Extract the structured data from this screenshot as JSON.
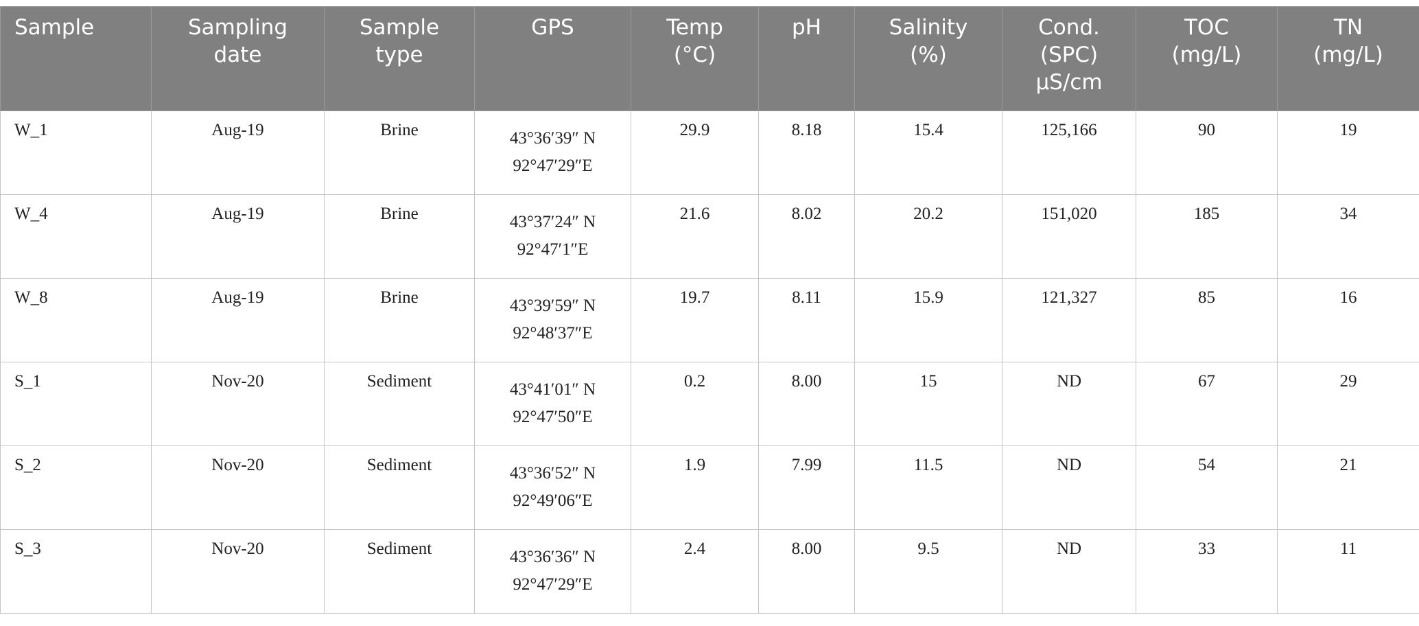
{
  "table": {
    "header": [
      [
        "Sample"
      ],
      [
        "Sampling",
        "date"
      ],
      [
        "Sample",
        "type"
      ],
      [
        "GPS"
      ],
      [
        "Temp",
        "(°C)"
      ],
      [
        "pH"
      ],
      [
        "Salinity",
        "(%)"
      ],
      [
        "Cond.",
        "(SPC)",
        "µS/cm"
      ],
      [
        "TOC",
        "(mg/L)"
      ],
      [
        "TN",
        "(mg/L)"
      ]
    ],
    "rows": [
      [
        "W_1",
        "Aug-19",
        "Brine",
        [
          "43°36′39″ N",
          "92°47′29″E"
        ],
        "29.9",
        "8.18",
        "15.4",
        "125,166",
        "90",
        "19"
      ],
      [
        "W_4",
        "Aug-19",
        "Brine",
        [
          "43°37′24″ N",
          "92°47′1″E"
        ],
        "21.6",
        "8.02",
        "20.2",
        "151,020",
        "185",
        "34"
      ],
      [
        "W_8",
        "Aug-19",
        "Brine",
        [
          "43°39′59″ N",
          "92°48′37″E"
        ],
        "19.7",
        "8.11",
        "15.9",
        "121,327",
        "85",
        "16"
      ],
      [
        "S_1",
        "Nov-20",
        "Sediment",
        [
          "43°41′01″ N",
          "92°47′50″E"
        ],
        "0.2",
        "8.00",
        "15",
        "ND",
        "67",
        "29"
      ],
      [
        "S_2",
        "Nov-20",
        "Sediment",
        [
          "43°36′52″ N",
          "92°49′06″E"
        ],
        "1.9",
        "7.99",
        "11.5",
        "ND",
        "54",
        "21"
      ],
      [
        "S_3",
        "Nov-20",
        "Sediment",
        [
          "43°36′36″ N",
          "92°47′29″E"
        ],
        "2.4",
        "8.00",
        "9.5",
        "ND",
        "33",
        "11"
      ]
    ]
  }
}
